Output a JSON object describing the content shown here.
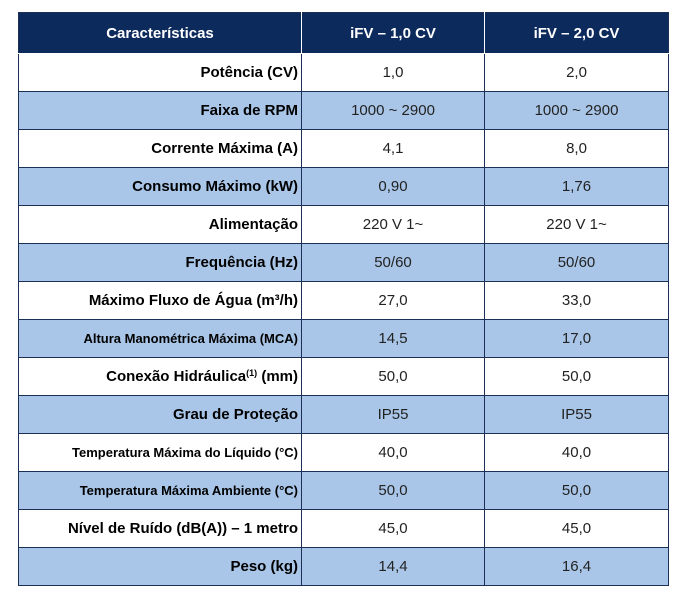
{
  "table": {
    "headers": [
      "Características",
      "iFV – 1,0 CV",
      "iFV – 2,0 CV"
    ],
    "rows": [
      {
        "label": "Potência (CV)",
        "v1": "1,0",
        "v2": "2,0"
      },
      {
        "label": "Faixa de RPM",
        "v1": "1000 ~ 2900",
        "v2": "1000 ~ 2900"
      },
      {
        "label": "Corrente Máxima (A)",
        "v1": "4,1",
        "v2": "8,0"
      },
      {
        "label": "Consumo Máximo (kW)",
        "v1": "0,90",
        "v2": "1,76"
      },
      {
        "label": "Alimentação",
        "v1": "220 V 1~",
        "v2": "220 V 1~"
      },
      {
        "label": "Frequência (Hz)",
        "v1": "50/60",
        "v2": "50/60"
      },
      {
        "label": "Máximo Fluxo de Água (m³/h)",
        "v1": "27,0",
        "v2": "33,0"
      },
      {
        "label": "Altura Manométrica Máxima (MCA)",
        "v1": "14,5",
        "v2": "17,0"
      },
      {
        "label": "Conexão Hidráulica",
        "label_sup": "(1)",
        "label_suffix": " (mm)",
        "v1": "50,0",
        "v2": "50,0"
      },
      {
        "label": "Grau de Proteção",
        "v1": "IP55",
        "v2": "IP55"
      },
      {
        "label": "Temperatura Máxima do Líquido (°C)",
        "v1": "40,0",
        "v2": "40,0"
      },
      {
        "label": "Temperatura Máxima Ambiente (°C)",
        "v1": "50,0",
        "v2": "50,0"
      },
      {
        "label": "Nível de Ruído (dB(A)) – 1 metro",
        "v1": "45,0",
        "v2": "45,0"
      },
      {
        "label": "Peso (kg)",
        "v1": "14,4",
        "v2": "16,4"
      }
    ]
  }
}
